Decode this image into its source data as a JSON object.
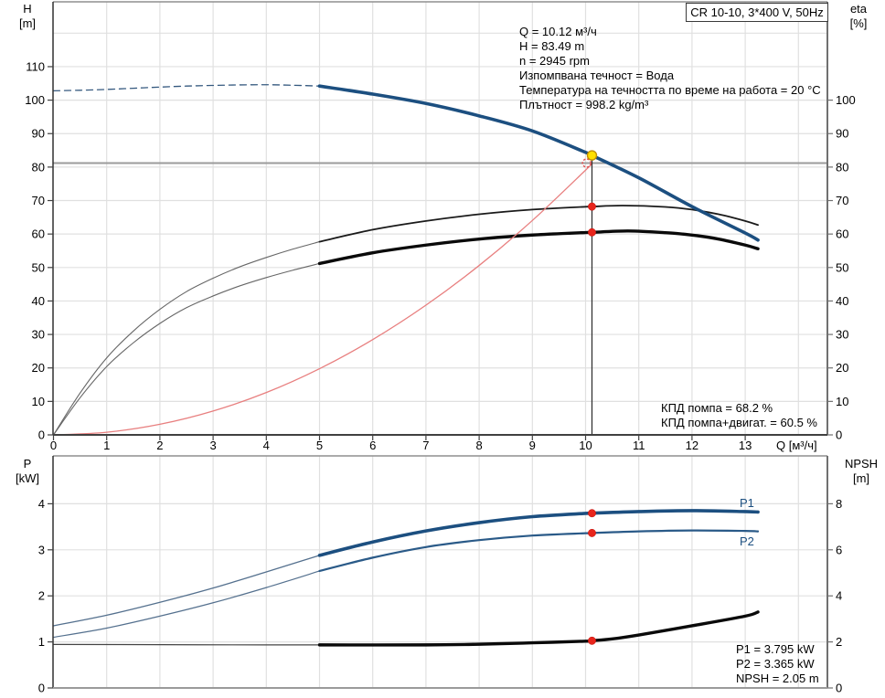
{
  "title_box": {
    "label": "CR 10-10, 3*400 V, 50Hz"
  },
  "info_lines": [
    "Q = 10.12 м³/ч",
    "H = 83.49 m",
    "n = 2945 rpm",
    "Изпомпвана течност = Вода",
    "Температура на течността по време на работа = 20 °C",
    "Плътност = 998.2 kg/m³"
  ],
  "efficiency_lines": [
    "КПД помпа = 68.2 %",
    "КПД помпа+двигат. = 60.5 %"
  ],
  "result_lines": [
    "P1 = 3.795 kW",
    "P2 = 3.365 kW",
    "NPSH = 2.05 m"
  ],
  "axis_labels": {
    "top_left": [
      "H",
      "[m]"
    ],
    "top_right": [
      "eta",
      "[%]"
    ],
    "x": "Q [м³/ч]",
    "bottom_left": [
      "P",
      "[kW]"
    ],
    "bottom_right": [
      "NPSH",
      "[m]"
    ]
  },
  "curve_labels": {
    "p1": "P1",
    "p2": "P2"
  },
  "colors": {
    "curve_blue": "#1c4f80",
    "curve_black": "#0a0a0a",
    "thin_gray": "#666666",
    "system_red": "#e87f7f",
    "marker_red": "#e8251c",
    "marker_yellow": "#ffe000",
    "grid": "#e0e0e0",
    "duty_line_gray": "#9b9b9b"
  },
  "chart_data": [
    {
      "type": "line",
      "title": "CR 10-10, 3*400 V, 50Hz",
      "xlabel": "Q [м³/ч]",
      "ylabel": "H [m]",
      "y2label": "eta [%]",
      "xlim": [
        0,
        14.55
      ],
      "ylim": [
        0,
        129.4
      ],
      "y2lim": [
        0,
        129.4
      ],
      "x_ticks": [
        0,
        1,
        2,
        3,
        4,
        5,
        6,
        7,
        8,
        9,
        10,
        11,
        12,
        13
      ],
      "x_grid": [
        1,
        2,
        3,
        4,
        5,
        6,
        7,
        8,
        9,
        10,
        11,
        12,
        13,
        14
      ],
      "y_ticks": [
        0,
        10,
        20,
        30,
        40,
        50,
        60,
        70,
        80,
        90,
        100,
        110
      ],
      "y_grid": [
        10,
        20,
        30,
        40,
        50,
        60,
        70,
        80,
        90,
        100,
        110,
        120
      ],
      "y2_ticks": [
        0,
        10,
        20,
        30,
        40,
        50,
        60,
        70,
        80,
        90,
        100
      ],
      "duty_lines": {
        "horizontal_h": 81.2,
        "vertical_q": 10.12,
        "vertical_to_h": 83.49
      },
      "series": [
        {
          "name": "head-curve-extended",
          "axis": "h",
          "color": "#35597f",
          "width": 1.3,
          "dash": "7 5",
          "points": [
            [
              0,
              102.8
            ],
            [
              0.5,
              102.95
            ],
            [
              1,
              103.2
            ],
            [
              1.5,
              103.55
            ],
            [
              2,
              103.9
            ],
            [
              2.5,
              104.2
            ],
            [
              3,
              104.4
            ],
            [
              3.5,
              104.55
            ],
            [
              4,
              104.6
            ],
            [
              4.5,
              104.45
            ],
            [
              5,
              104.2
            ]
          ]
        },
        {
          "name": "eta-pump-curve-extended",
          "axis": "h",
          "color": "#666666",
          "width": 1.1,
          "points": [
            [
              0,
              0
            ],
            [
              0.5,
              12.5
            ],
            [
              1,
              23
            ],
            [
              1.5,
              31
            ],
            [
              2,
              37.5
            ],
            [
              2.5,
              42.8
            ],
            [
              3,
              46.8
            ],
            [
              3.5,
              50.2
            ],
            [
              4,
              53
            ],
            [
              4.5,
              55.5
            ],
            [
              5,
              57.7
            ]
          ]
        },
        {
          "name": "eta-pump-curve",
          "axis": "h",
          "color": "#1a1a1a",
          "width": 1.8,
          "points": [
            [
              5,
              57.7
            ],
            [
              6,
              61.3
            ],
            [
              7,
              63.9
            ],
            [
              8,
              65.9
            ],
            [
              9,
              67.3
            ],
            [
              10,
              68.15
            ],
            [
              10.12,
              68.2
            ],
            [
              10.7,
              68.5
            ],
            [
              11.5,
              68.1
            ],
            [
              12,
              67.3
            ],
            [
              12.5,
              65.9
            ],
            [
              13,
              63.9
            ],
            [
              13.24,
              62.7
            ]
          ]
        },
        {
          "name": "eta-pump-motor-curve-extended",
          "axis": "h",
          "color": "#666666",
          "width": 1.1,
          "points": [
            [
              0,
              0
            ],
            [
              0.5,
              11.1
            ],
            [
              1,
              20.4
            ],
            [
              1.5,
              27.5
            ],
            [
              2,
              33.3
            ],
            [
              2.5,
              38
            ],
            [
              3,
              41.5
            ],
            [
              3.5,
              44.5
            ],
            [
              4,
              47
            ],
            [
              4.5,
              49.2
            ],
            [
              5,
              51.2
            ]
          ]
        },
        {
          "name": "eta-pump-motor-curve",
          "axis": "h",
          "color": "#0a0a0a",
          "width": 3.4,
          "points": [
            [
              5,
              51.2
            ],
            [
              6,
              54.4
            ],
            [
              7,
              56.7
            ],
            [
              8,
              58.5
            ],
            [
              9,
              59.7
            ],
            [
              10,
              60.45
            ],
            [
              10.12,
              60.5
            ],
            [
              10.8,
              60.9
            ],
            [
              11.5,
              60.4
            ],
            [
              12,
              59.7
            ],
            [
              12.5,
              58.5
            ],
            [
              13,
              56.7
            ],
            [
              13.24,
              55.6
            ]
          ]
        },
        {
          "name": "system-curve",
          "axis": "h",
          "color": "#e87f7f",
          "width": 1.3,
          "points": [
            [
              0,
              0
            ],
            [
              1,
              0.79
            ],
            [
              2,
              3.16
            ],
            [
              3,
              7.12
            ],
            [
              4,
              12.65
            ],
            [
              5,
              19.77
            ],
            [
              6,
              28.47
            ],
            [
              7,
              38.75
            ],
            [
              8,
              50.61
            ],
            [
              9,
              64.05
            ],
            [
              10,
              79.08
            ],
            [
              10.12,
              81
            ]
          ]
        },
        {
          "name": "head-curve",
          "axis": "h",
          "color": "#1c4f80",
          "width": 3.6,
          "points": [
            [
              5,
              104.2
            ],
            [
              6,
              101.8
            ],
            [
              7,
              99
            ],
            [
              8,
              95.3
            ],
            [
              9,
              90.8
            ],
            [
              10,
              84.4
            ],
            [
              10.12,
              83.49
            ],
            [
              11,
              76.8
            ],
            [
              12,
              68.2
            ],
            [
              13,
              60.3
            ],
            [
              13.24,
              58.2
            ]
          ]
        }
      ],
      "markers": [
        {
          "name": "duty-point-requested",
          "q": 10.02,
          "v": 81.2,
          "style": "open-red"
        },
        {
          "name": "duty-point-actual",
          "q": 10.12,
          "v": 83.49,
          "style": "yellow"
        },
        {
          "name": "eta-pump-duty-dot",
          "q": 10.12,
          "v": 68.2,
          "style": "red"
        },
        {
          "name": "eta-pump-motor-duty-dot",
          "q": 10.12,
          "v": 60.5,
          "style": "red"
        }
      ]
    },
    {
      "type": "line",
      "xlabel": "Q [м³/ч]",
      "ylabel": "P [kW]",
      "y2label": "NPSH [m]",
      "xlim": [
        0,
        14.55
      ],
      "ylim": [
        0,
        5.04
      ],
      "y2lim": [
        0,
        10.08
      ],
      "x_grid": [
        1,
        2,
        3,
        4,
        5,
        6,
        7,
        8,
        9,
        10,
        11,
        12,
        13,
        14
      ],
      "y_ticks": [
        0,
        1,
        2,
        3,
        4
      ],
      "y_grid": [
        1,
        2,
        3,
        4
      ],
      "y2_ticks": [
        0,
        2,
        4,
        6,
        8
      ],
      "series": [
        {
          "name": "p1-curve-extended",
          "axis": "p",
          "color": "#54708e",
          "width": 1.3,
          "points": [
            [
              0,
              1.35
            ],
            [
              1,
              1.58
            ],
            [
              2,
              1.86
            ],
            [
              3,
              2.17
            ],
            [
              4,
              2.52
            ],
            [
              5,
              2.88
            ]
          ]
        },
        {
          "name": "p1-curve",
          "axis": "p",
          "color": "#1c4f80",
          "width": 3.6,
          "points": [
            [
              5,
              2.88
            ],
            [
              6,
              3.17
            ],
            [
              7,
              3.41
            ],
            [
              8,
              3.59
            ],
            [
              9,
              3.72
            ],
            [
              10,
              3.79
            ],
            [
              10.12,
              3.795
            ],
            [
              11,
              3.83
            ],
            [
              12,
              3.85
            ],
            [
              13,
              3.83
            ],
            [
              13.24,
              3.82
            ]
          ]
        },
        {
          "name": "p2-curve-extended",
          "axis": "p",
          "color": "#54708e",
          "width": 1.2,
          "points": [
            [
              0,
              1.1
            ],
            [
              1,
              1.3
            ],
            [
              2,
              1.56
            ],
            [
              3,
              1.85
            ],
            [
              4,
              2.18
            ],
            [
              5,
              2.54
            ]
          ]
        },
        {
          "name": "p2-curve",
          "axis": "p",
          "color": "#2a5a88",
          "width": 2.2,
          "points": [
            [
              5,
              2.54
            ],
            [
              6,
              2.83
            ],
            [
              7,
              3.06
            ],
            [
              8,
              3.21
            ],
            [
              9,
              3.31
            ],
            [
              10,
              3.36
            ],
            [
              10.12,
              3.365
            ],
            [
              11,
              3.4
            ],
            [
              12,
              3.42
            ],
            [
              13,
              3.41
            ],
            [
              13.24,
              3.4
            ]
          ]
        },
        {
          "name": "npsh-curve-extended",
          "axis": "npsh",
          "color": "#444444",
          "width": 1.2,
          "points": [
            [
              0,
              1.89
            ],
            [
              2,
              1.88
            ],
            [
              4,
              1.87
            ],
            [
              5,
              1.87
            ]
          ]
        },
        {
          "name": "npsh-curve",
          "axis": "npsh",
          "color": "#0a0a0a",
          "width": 3.4,
          "points": [
            [
              5,
              1.87
            ],
            [
              7,
              1.87
            ],
            [
              8,
              1.9
            ],
            [
              9,
              1.96
            ],
            [
              10,
              2.03
            ],
            [
              10.12,
              2.05
            ],
            [
              10.5,
              2.13
            ],
            [
              11,
              2.3
            ],
            [
              12,
              2.7
            ],
            [
              13,
              3.12
            ],
            [
              13.24,
              3.3
            ]
          ]
        }
      ],
      "markers": [
        {
          "name": "p1-duty-dot",
          "q": 10.12,
          "v": 3.795,
          "axis": "p",
          "style": "red"
        },
        {
          "name": "p2-duty-dot",
          "q": 10.12,
          "v": 3.365,
          "axis": "p",
          "style": "red"
        },
        {
          "name": "npsh-duty-dot",
          "q": 10.12,
          "v": 2.05,
          "axis": "npsh",
          "style": "red"
        }
      ]
    }
  ]
}
